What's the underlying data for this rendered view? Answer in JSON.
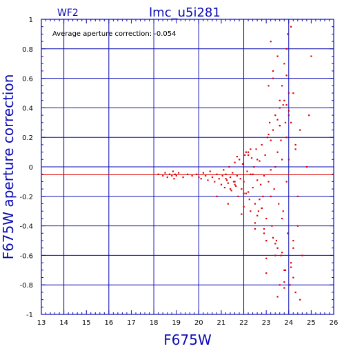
{
  "chart_data": {
    "type": "scatter",
    "corner_label": "WF2",
    "title": "lmc_u5i281",
    "xlabel": "F675W",
    "ylabel": "F675W aperture correction",
    "annotation": "Average aperture correction: -0.054",
    "average": -0.054,
    "xlim": [
      13,
      26
    ],
    "ylim": [
      -1,
      1
    ],
    "xticks": [
      13,
      14,
      15,
      16,
      17,
      18,
      19,
      20,
      21,
      22,
      23,
      24,
      25,
      26
    ],
    "yticks": [
      -1,
      -0.8,
      -0.6,
      -0.4,
      -0.2,
      0,
      0.2,
      0.4,
      0.6,
      0.8,
      1
    ],
    "ytick_labels": [
      "-1",
      "-0.8",
      "-0.6",
      "-0.4",
      "-0.2",
      "0",
      "0.2",
      "0.4",
      "0.6",
      "0.8",
      "1"
    ],
    "grid": true,
    "colors": {
      "axes": "#0a0ab4",
      "points": "#e00000",
      "average_line": "#e00000",
      "annotation": "#000000"
    },
    "x": [
      18.2,
      18.4,
      18.5,
      18.6,
      18.7,
      18.8,
      18.85,
      18.9,
      18.95,
      19.0,
      19.1,
      19.3,
      19.5,
      19.7,
      19.9,
      20.0,
      20.1,
      20.2,
      20.3,
      20.4,
      20.5,
      20.6,
      20.7,
      20.8,
      20.9,
      21.0,
      21.05,
      21.1,
      21.15,
      21.2,
      21.25,
      21.3,
      21.35,
      21.4,
      21.45,
      21.5,
      21.55,
      21.6,
      21.65,
      21.7,
      21.75,
      21.8,
      21.85,
      21.9,
      21.95,
      22.0,
      22.05,
      22.1,
      22.15,
      22.2,
      22.25,
      22.3,
      22.35,
      22.4,
      22.45,
      22.5,
      22.55,
      22.6,
      22.65,
      22.7,
      22.75,
      22.8,
      22.85,
      22.9,
      22.95,
      23.0,
      23.05,
      23.1,
      23.15,
      23.2,
      23.25,
      23.3,
      23.35,
      23.4,
      23.45,
      23.5,
      23.55,
      23.6,
      23.65,
      23.7,
      23.75,
      23.8,
      23.85,
      23.9,
      23.95,
      24.0,
      24.05,
      24.1,
      24.2,
      24.3,
      24.4,
      24.5,
      24.6,
      24.8,
      24.9,
      25.0,
      22.1,
      22.3,
      22.6,
      22.9,
      23.1,
      23.2,
      23.3,
      23.4,
      23.5,
      23.6,
      23.7,
      23.8,
      23.9,
      23.95,
      24.0,
      24.1,
      24.2,
      24.3,
      21.3,
      21.6,
      21.9,
      22.2,
      22.5,
      22.8,
      23.0,
      23.2,
      23.4,
      23.6,
      23.8,
      24.0,
      24.2,
      24.4,
      21.4,
      21.7,
      22.0,
      22.3,
      22.6,
      22.9,
      23.1,
      23.3,
      23.5,
      23.7,
      23.9,
      24.1,
      22.4,
      22.7,
      23.0,
      23.3,
      23.6,
      23.9,
      24.2,
      23.2,
      23.5,
      23.8,
      24.1,
      24.5,
      23.6,
      23.7,
      23.8,
      23.9,
      24.0,
      23.85,
      23.65,
      23.75,
      22.0,
      22.5,
      23.0,
      23.5,
      24.3,
      20.8,
      21.2,
      21.6,
      22.2,
      22.8,
      23.4
    ],
    "y": [
      -0.05,
      -0.06,
      -0.04,
      -0.07,
      -0.05,
      -0.06,
      -0.03,
      -0.08,
      -0.05,
      -0.06,
      -0.04,
      -0.07,
      -0.05,
      -0.06,
      -0.05,
      -0.07,
      -0.08,
      -0.04,
      -0.06,
      -0.09,
      -0.03,
      -0.07,
      -0.1,
      -0.05,
      -0.08,
      -0.12,
      -0.06,
      -0.02,
      -0.14,
      -0.05,
      -0.09,
      -0.11,
      0.0,
      -0.07,
      -0.16,
      -0.04,
      -0.1,
      0.03,
      -0.13,
      -0.06,
      -0.2,
      0.05,
      -0.08,
      -0.15,
      0.02,
      -0.1,
      0.08,
      -0.18,
      -0.03,
      0.1,
      -0.22,
      -0.05,
      0.06,
      -0.14,
      0.0,
      -0.25,
      0.12,
      -0.09,
      -0.3,
      0.04,
      -0.12,
      0.15,
      -0.2,
      -0.06,
      0.08,
      -0.35,
      0.2,
      -0.1,
      0.3,
      -0.02,
      -0.4,
      0.25,
      -0.15,
      0.35,
      -0.5,
      0.1,
      -0.25,
      0.4,
      -0.6,
      0.05,
      -0.3,
      0.45,
      -0.7,
      0.2,
      -0.45,
      0.5,
      -0.8,
      0.3,
      -0.55,
      0.15,
      -0.4,
      0.25,
      -0.6,
      0.0,
      0.35,
      0.75,
      0.1,
      -0.3,
      0.05,
      -0.45,
      0.55,
      -0.2,
      0.65,
      0.0,
      -0.55,
      0.45,
      -0.35,
      0.7,
      -0.1,
      0.9,
      0.35,
      -0.65,
      0.5,
      -0.85,
      -0.25,
      -0.1,
      -0.32,
      0.08,
      -0.38,
      -0.28,
      -0.5,
      0.18,
      -0.6,
      0.28,
      -0.7,
      0.38,
      -0.75,
      -0.2,
      -0.15,
      0.07,
      -0.27,
      0.12,
      -0.33,
      -0.42,
      0.22,
      -0.48,
      0.32,
      -0.58,
      0.42,
      -0.68,
      -0.05,
      -0.22,
      -0.62,
      0.6,
      -0.8,
      0.8,
      -0.5,
      0.85,
      0.75,
      -0.78,
      0.95,
      -0.9,
      0.28,
      0.55,
      -0.82,
      0.62,
      0.05,
      0.3,
      0.18,
      0.42,
      -0.18,
      -0.42,
      -0.72,
      -0.88,
      0.12,
      -0.2,
      -0.08,
      -0.12,
      -0.17,
      -0.28,
      -0.52
    ]
  }
}
